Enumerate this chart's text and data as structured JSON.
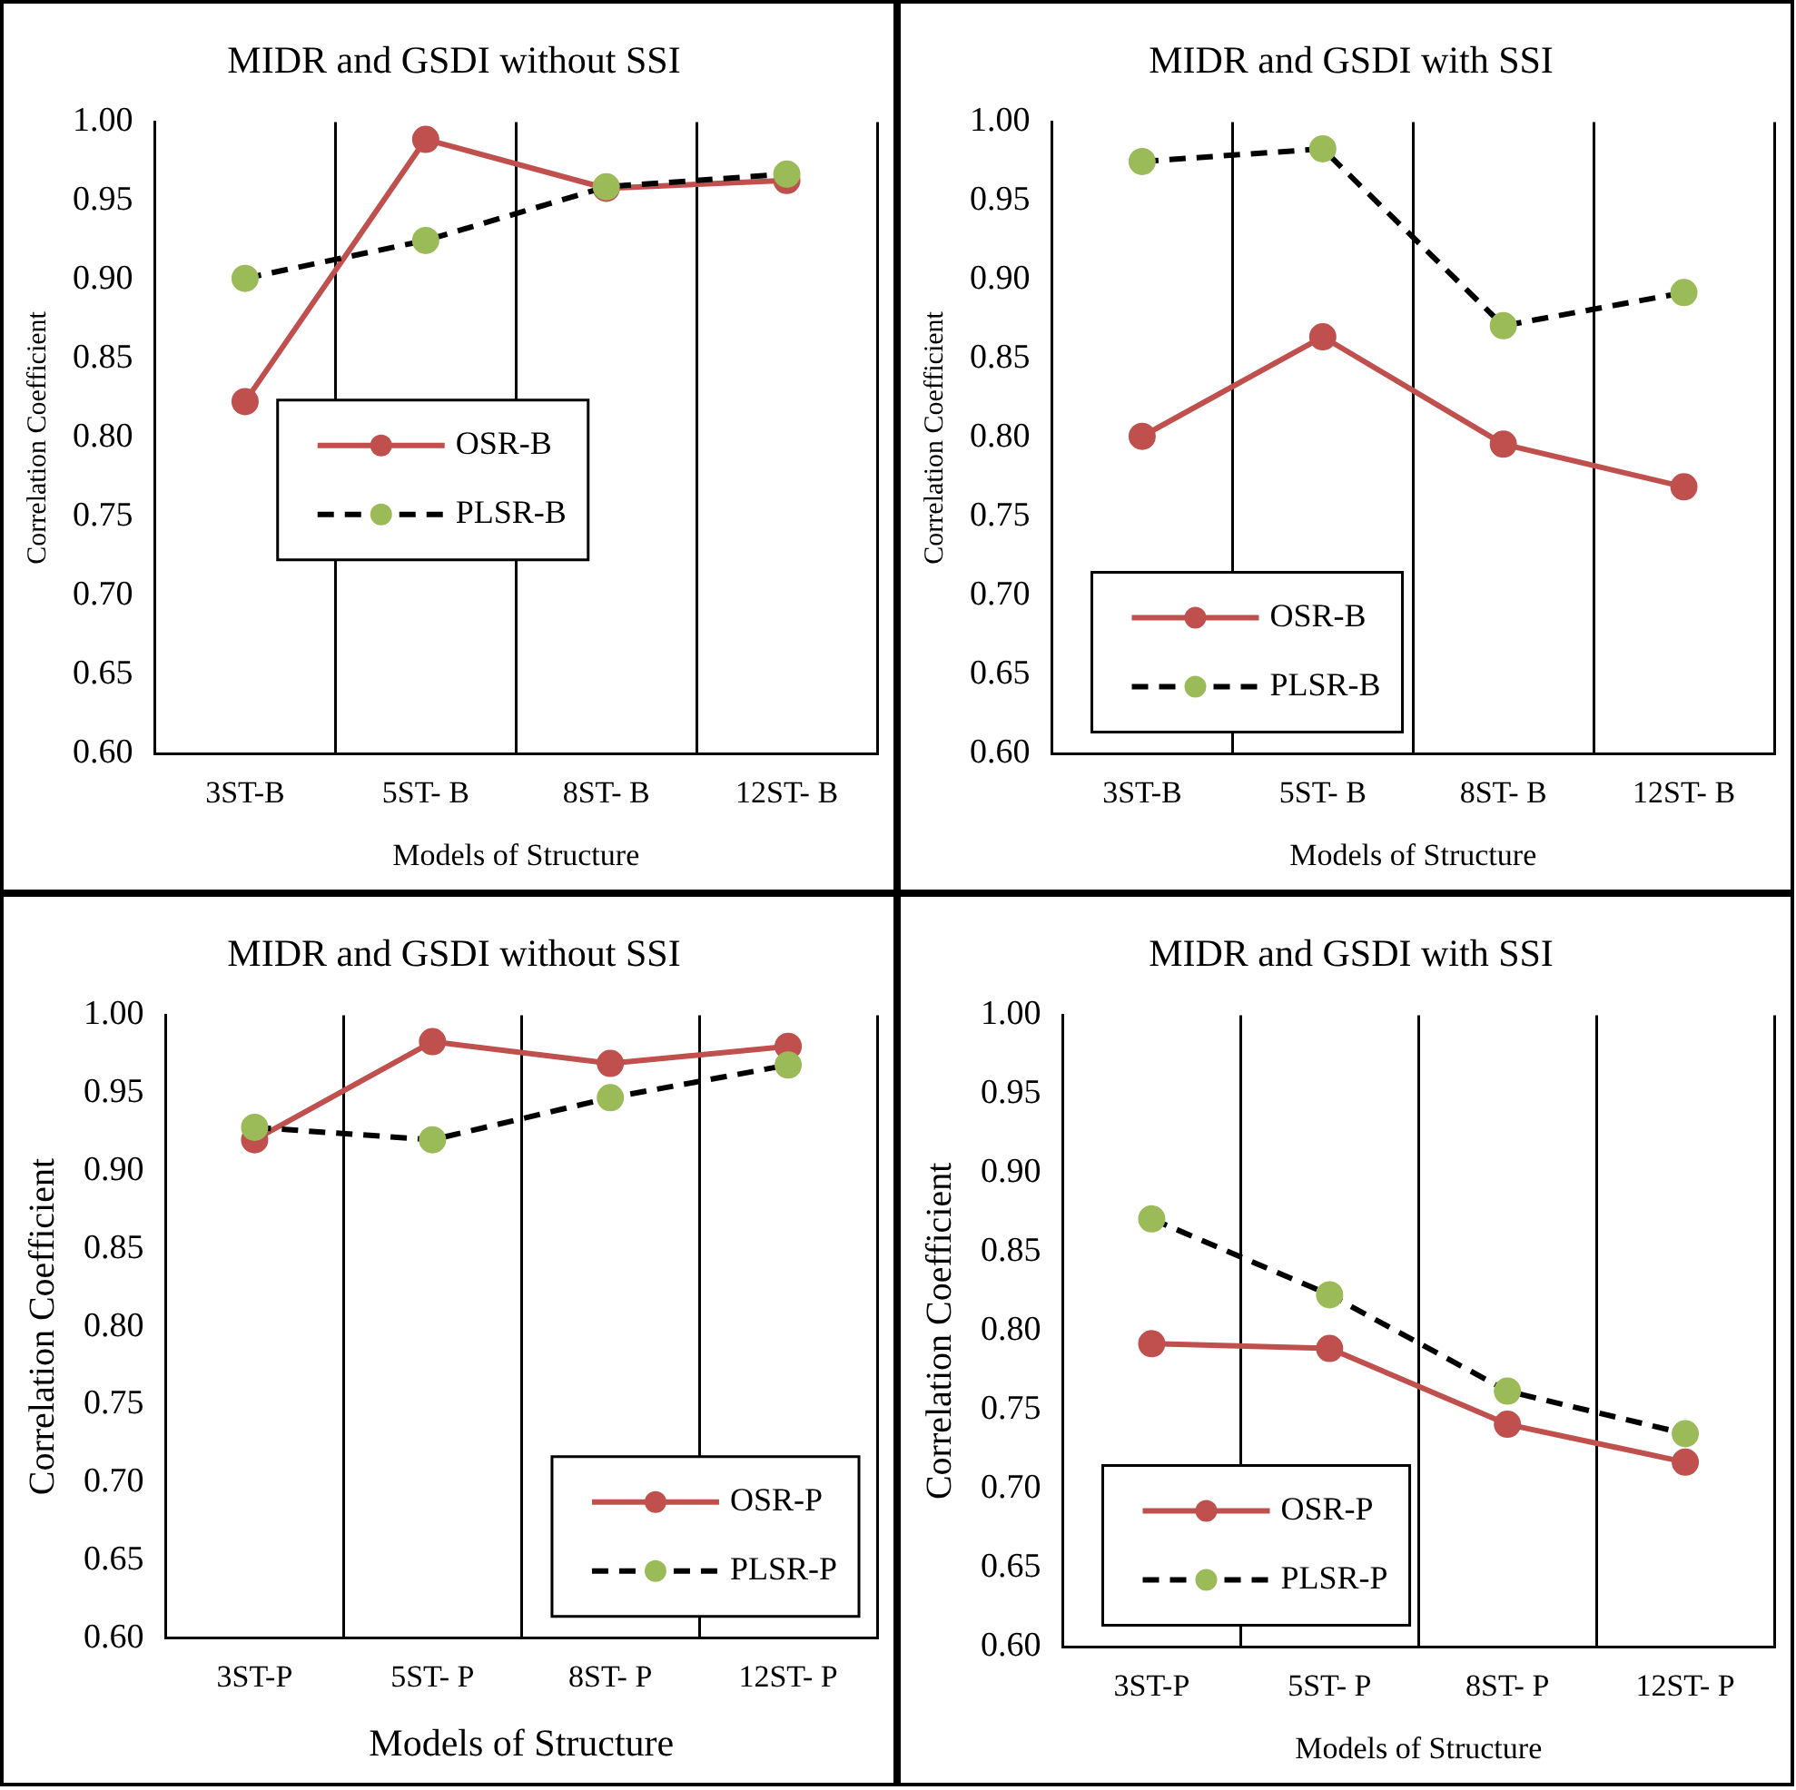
{
  "chart_data": [
    {
      "type": "line",
      "title": "MIDR and GSDI without SSI",
      "xlabel": "Models of Structure",
      "ylabel": "Correlation Coefficient",
      "categories": [
        "3ST-B",
        "5ST- B",
        "8ST- B",
        "12ST- B"
      ],
      "series": [
        {
          "name": "OSR-B",
          "color": "#c0504d",
          "values": [
            0.823,
            0.989,
            0.958,
            0.963
          ],
          "line_style": "solid",
          "marker": "circle"
        },
        {
          "name": "PLSR-B",
          "color": "#9bbb59",
          "values": [
            0.901,
            0.925,
            0.959,
            0.967
          ],
          "line_style": "dashed",
          "marker": "circle"
        }
      ],
      "ylim": [
        0.6,
        1.0
      ],
      "yticks": [
        {
          "value": 0.6,
          "label": "0.60"
        },
        {
          "value": 0.65,
          "label": "0.65"
        },
        {
          "value": 0.7,
          "label": "0.70"
        },
        {
          "value": 0.75,
          "label": "0.75"
        },
        {
          "value": 0.8,
          "label": "0.80"
        },
        {
          "value": 0.85,
          "label": "0.85"
        },
        {
          "value": 0.9,
          "label": "0.90"
        },
        {
          "value": 0.95,
          "label": "0.95"
        },
        {
          "value": 1.0,
          "label": "1.00"
        }
      ],
      "grid": "x",
      "legend": "center"
    },
    {
      "type": "line",
      "title": "MIDR and GSDI with SSI",
      "xlabel": "Models of Structure",
      "ylabel": "Correlation Coefficient",
      "categories": [
        "3ST-B",
        "5ST- B",
        "8ST- B",
        "12ST- B"
      ],
      "series": [
        {
          "name": "OSR-B",
          "color": "#c0504d",
          "values": [
            0.801,
            0.864,
            0.796,
            0.769
          ],
          "line_style": "solid",
          "marker": "circle"
        },
        {
          "name": "PLSR-B",
          "color": "#9bbb59",
          "values": [
            0.975,
            0.983,
            0.871,
            0.892
          ],
          "line_style": "dashed",
          "marker": "circle"
        }
      ],
      "ylim": [
        0.6,
        1.0
      ],
      "yticks": [
        {
          "value": 0.6,
          "label": "0.60"
        },
        {
          "value": 0.65,
          "label": "0.65"
        },
        {
          "value": 0.7,
          "label": "0.70"
        },
        {
          "value": 0.75,
          "label": "0.75"
        },
        {
          "value": 0.8,
          "label": "0.80"
        },
        {
          "value": 0.85,
          "label": "0.85"
        },
        {
          "value": 0.9,
          "label": "0.90"
        },
        {
          "value": 0.95,
          "label": "0.95"
        },
        {
          "value": 1.0,
          "label": "1.00"
        }
      ],
      "grid": "x",
      "legend": "bottom left"
    },
    {
      "type": "line",
      "title": "MIDR and GSDI without SSI",
      "xlabel": "Models of Structure",
      "ylabel": "Correlation Coefficient",
      "categories": [
        "3ST-P",
        "5ST- P",
        "8ST- P",
        "12ST- P"
      ],
      "series": [
        {
          "name": "OSR-P",
          "color": "#c0504d",
          "values": [
            0.92,
            0.983,
            0.969,
            0.98
          ],
          "line_style": "solid",
          "marker": "circle"
        },
        {
          "name": "PLSR-P",
          "color": "#9bbb59",
          "values": [
            0.928,
            0.92,
            0.947,
            0.968
          ],
          "line_style": "dashed",
          "marker": "circle"
        }
      ],
      "ylim": [
        0.6,
        1.0
      ],
      "yticks": [
        {
          "value": 0.6,
          "label": "0.60"
        },
        {
          "value": 0.65,
          "label": "0.65"
        },
        {
          "value": 0.7,
          "label": "0.70"
        },
        {
          "value": 0.75,
          "label": "0.75"
        },
        {
          "value": 0.8,
          "label": "0.80"
        },
        {
          "value": 0.85,
          "label": "0.85"
        },
        {
          "value": 0.9,
          "label": "0.90"
        },
        {
          "value": 0.95,
          "label": "0.95"
        },
        {
          "value": 1.0,
          "label": "1.00"
        }
      ],
      "grid": "x",
      "legend": "bottom right"
    },
    {
      "type": "line",
      "title": "MIDR and GSDI with SSI",
      "xlabel": "Models of Structure",
      "ylabel": "Correlation Coefficient",
      "categories": [
        "3ST-P",
        "5ST- P",
        "8ST- P",
        "12ST- P"
      ],
      "series": [
        {
          "name": "OSR-P",
          "color": "#c0504d",
          "values": [
            0.792,
            0.789,
            0.741,
            0.717
          ],
          "line_style": "solid",
          "marker": "circle"
        },
        {
          "name": "PLSR-P",
          "color": "#9bbb59",
          "values": [
            0.871,
            0.823,
            0.762,
            0.735
          ],
          "line_style": "dashed",
          "marker": "circle"
        }
      ],
      "ylim": [
        0.6,
        1.0
      ],
      "yticks": [
        {
          "value": 0.6,
          "label": "0.60"
        },
        {
          "value": 0.65,
          "label": "0.65"
        },
        {
          "value": 0.7,
          "label": "0.70"
        },
        {
          "value": 0.75,
          "label": "0.75"
        },
        {
          "value": 0.8,
          "label": "0.80"
        },
        {
          "value": 0.85,
          "label": "0.85"
        },
        {
          "value": 0.9,
          "label": "0.90"
        },
        {
          "value": 0.95,
          "label": "0.95"
        },
        {
          "value": 1.0,
          "label": "1.00"
        }
      ],
      "grid": "x",
      "legend": "bottom left"
    }
  ]
}
